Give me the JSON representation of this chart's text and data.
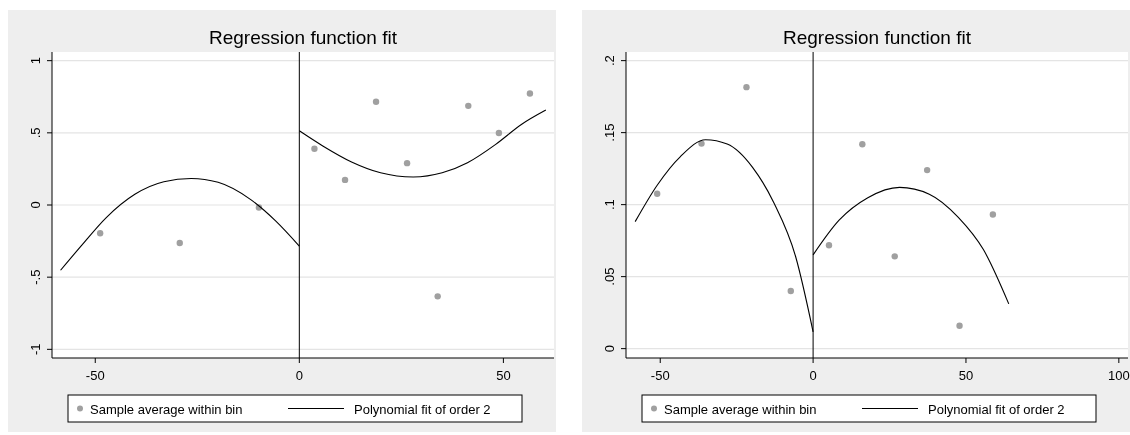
{
  "chart_data": [
    {
      "type": "scatter",
      "title": "Regression function fit",
      "xlim": [
        -60.6,
        62.4
      ],
      "ylim": [
        -1.06,
        1.06
      ],
      "xticks": [
        -50,
        {
          "value": 0,
          "label": "0"
        },
        50
      ],
      "yticks": [
        {
          "value": -1,
          "label": "-1"
        },
        {
          "value": -0.5,
          "label": "-.5"
        },
        {
          "value": 0,
          "label": "0"
        },
        {
          "value": 0.5,
          "label": ".5"
        },
        1
      ],
      "grid": "y",
      "legend": "bottom",
      "ref_lines": [
        {
          "axis": "x",
          "value": 0,
          "color": "#000000"
        }
      ],
      "series": [
        {
          "name": "Sample average within bin",
          "marker": "circle",
          "color": "#a0a0a0",
          "x": [
            -48.8,
            -29.3,
            -9.9,
            3.7,
            11.2,
            18.8,
            26.4,
            33.9,
            41.4,
            48.9,
            56.5
          ],
          "values": [
            -0.196,
            -0.263,
            -0.017,
            0.39,
            0.174,
            0.715,
            0.29,
            -0.633,
            0.687,
            0.499,
            0.772
          ]
        },
        {
          "name": "Polynomial fit of order 2",
          "type": "line",
          "marker": "none",
          "color": "#000000",
          "x": [
            -58.5,
            -53.5,
            -47.3,
            -40.3,
            -33.2,
            -26.5,
            -19.9,
            -11.9,
            -5.75,
            0
          ],
          "values": [
            -0.452,
            -0.285,
            -0.087,
            0.074,
            0.161,
            0.184,
            0.157,
            0.037,
            -0.112,
            -0.285
          ]
        },
        {
          "type": "line",
          "marker": "none",
          "color": "#000000",
          "x": [
            0,
            5.75,
            12.8,
            19.9,
            27.9,
            35.0,
            41.2,
            48.2,
            54.4,
            60.4
          ],
          "values": [
            0.514,
            0.409,
            0.298,
            0.223,
            0.194,
            0.223,
            0.293,
            0.422,
            0.558,
            0.658
          ]
        }
      ]
    },
    {
      "type": "scatter",
      "title": "Regression function fit",
      "xlim": [
        -61.2,
        103
      ],
      "ylim": [
        -0.0065,
        0.206
      ],
      "xticks": [
        -50,
        {
          "value": 0,
          "label": "0"
        },
        50,
        100
      ],
      "yticks": [
        {
          "value": 0,
          "label": "0"
        },
        {
          "value": 0.05,
          "label": ".05"
        },
        {
          "value": 0.1,
          "label": ".1"
        },
        {
          "value": 0.15,
          "label": ".15"
        },
        {
          "value": 0.2,
          "label": ".2"
        }
      ],
      "grid": "y",
      "legend": "bottom",
      "ref_lines": [
        {
          "axis": "x",
          "value": 0,
          "color": "#000000"
        }
      ],
      "series": [
        {
          "name": "Sample average within bin",
          "marker": "circle",
          "color": "#a0a0a0",
          "x": [
            -51.0,
            -36.5,
            -21.8,
            -7.3,
            5.2,
            16.1,
            26.7,
            37.3,
            47.9,
            58.8
          ],
          "values": [
            0.1076,
            0.1424,
            0.1816,
            0.04,
            0.0718,
            0.1419,
            0.0641,
            0.124,
            0.0159,
            0.0932
          ]
        },
        {
          "name": "Polynomial fit of order 2",
          "type": "line",
          "marker": "none",
          "color": "#000000",
          "x": [
            -58.2,
            -51.0,
            -43.4,
            -35.2,
            -28.1,
            -19.8,
            -12.8,
            -5.7,
            0
          ],
          "values": [
            0.0882,
            0.1135,
            0.1334,
            0.1451,
            0.1421,
            0.1259,
            0.1011,
            0.0638,
            0.0117
          ]
        },
        {
          "type": "line",
          "marker": "none",
          "color": "#000000",
          "x": [
            0,
            8.5,
            17.9,
            28.3,
            38.0,
            47.5,
            55.7,
            64.0
          ],
          "values": [
            0.0651,
            0.0892,
            0.1048,
            0.112,
            0.1073,
            0.0912,
            0.0688,
            0.0311
          ]
        }
      ]
    }
  ]
}
